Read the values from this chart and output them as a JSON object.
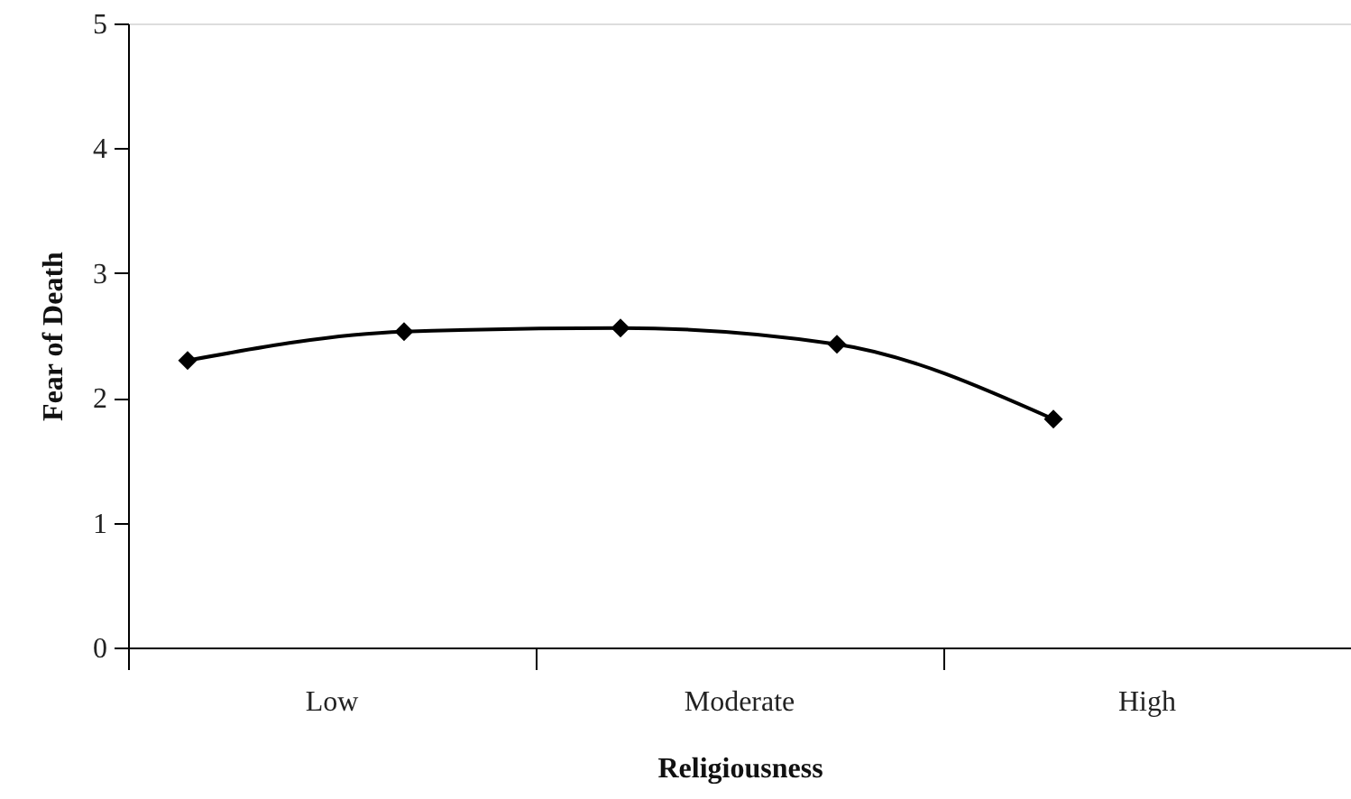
{
  "chart_data": {
    "type": "line",
    "xlabel": "Religiousness",
    "ylabel": "Fear of Death",
    "categories": [
      null,
      null,
      null,
      null,
      null
    ],
    "series": [
      {
        "color": "#000000",
        "values": [
          2.3,
          2.53,
          2.56,
          2.43,
          1.83
        ]
      }
    ],
    "annotations": [
      "Low",
      "Moderate",
      "High"
    ],
    "ylim": [
      0,
      5
    ],
    "yticks": [
      0,
      1,
      2,
      3,
      4,
      5
    ],
    "marker": "diamond",
    "line_style": "solid"
  }
}
